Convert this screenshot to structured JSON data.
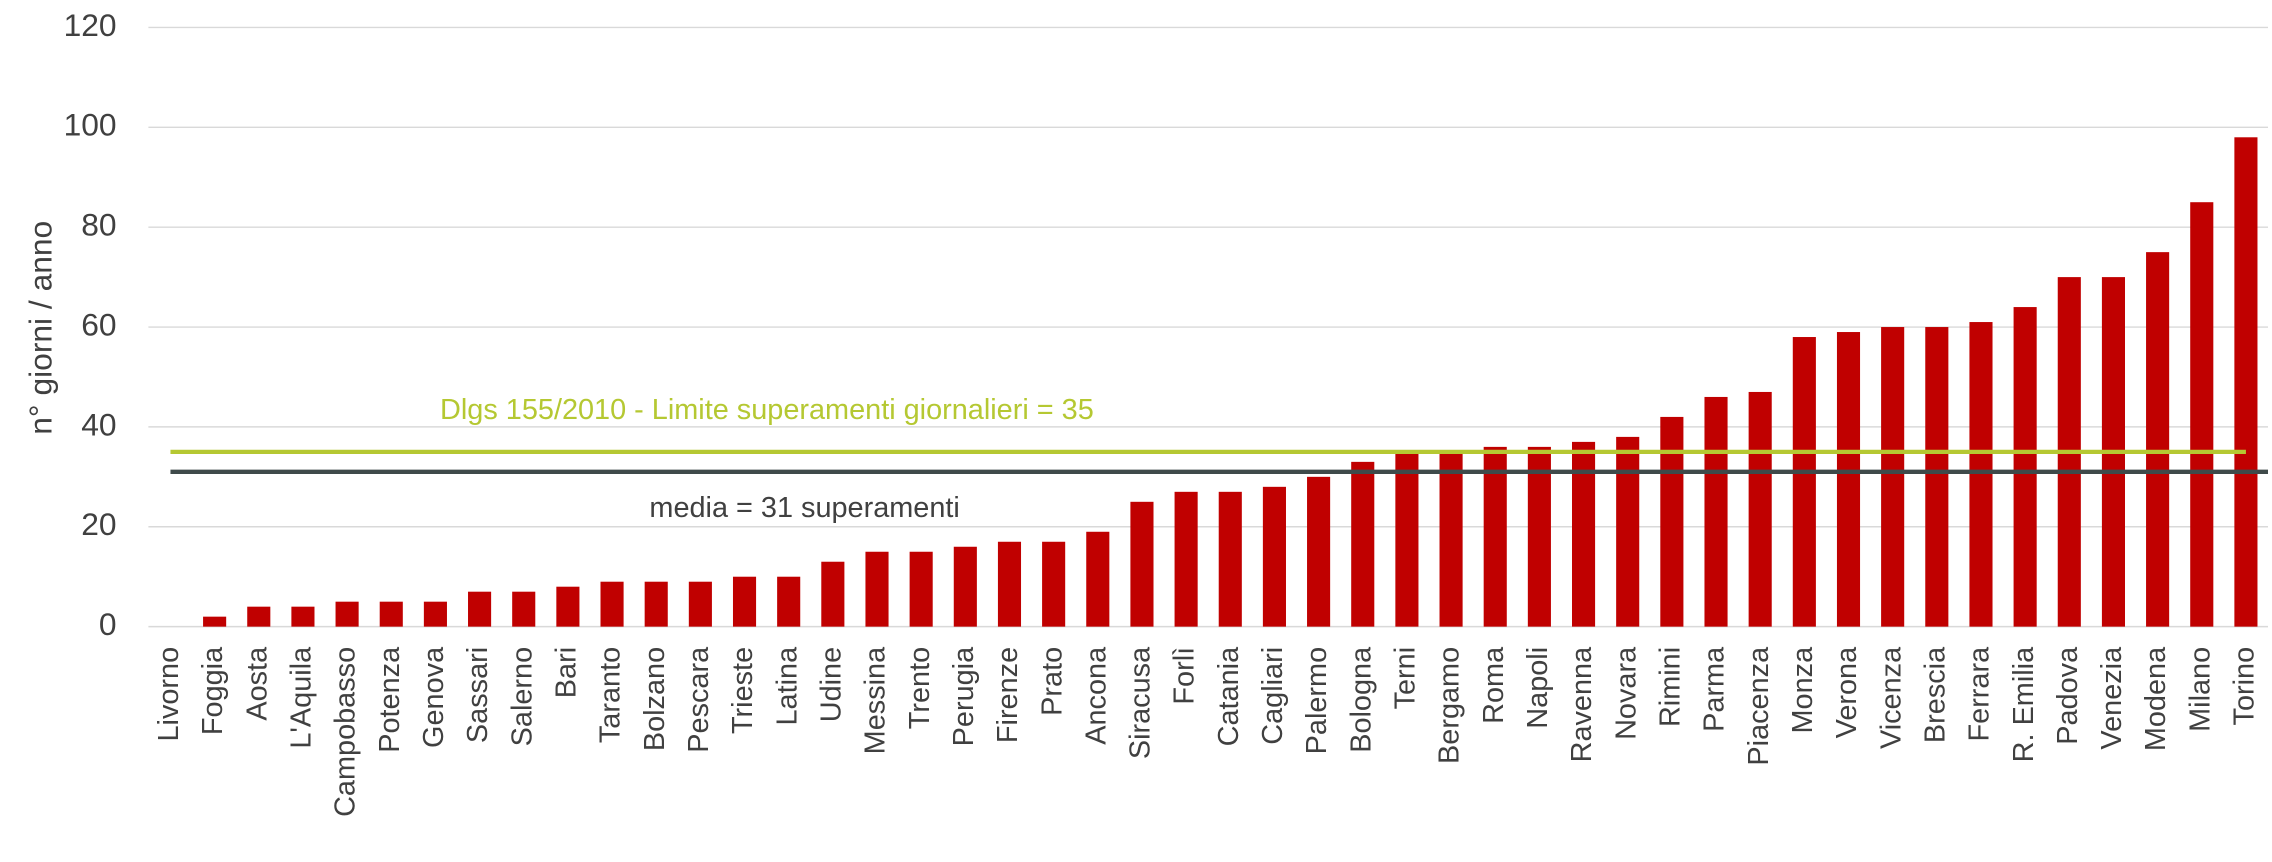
{
  "chart_data": {
    "type": "bar",
    "y_label": "n° giorni / anno",
    "categories": [
      "Livorno",
      "Foggia",
      "Aosta",
      "L'Aquila",
      "Campobasso",
      "Potenza",
      "Genova",
      "Sassari",
      "Salerno",
      "Bari",
      "Taranto",
      "Bolzano",
      "Pescara",
      "Trieste",
      "Latina",
      "Udine",
      "Messina",
      "Trento",
      "Perugia",
      "Firenze",
      "Prato",
      "Ancona",
      "Siracusa",
      "Forlì",
      "Catania",
      "Cagliari",
      "Palermo",
      "Bologna",
      "Terni",
      "Bergamo",
      "Roma",
      "Napoli",
      "Ravenna",
      "Novara",
      "Rimini",
      "Parma",
      "Piacenza",
      "Monza",
      "Verona",
      "Vicenza",
      "Brescia",
      "Ferrara",
      "R. Emilia",
      "Padova",
      "Venezia",
      "Modena",
      "Milano",
      "Torino"
    ],
    "values": [
      0,
      2,
      4,
      4,
      5,
      5,
      5,
      7,
      7,
      8,
      9,
      9,
      9,
      10,
      10,
      13,
      15,
      15,
      16,
      17,
      17,
      19,
      25,
      27,
      27,
      28,
      30,
      33,
      35,
      35,
      36,
      36,
      37,
      38,
      42,
      46,
      47,
      58,
      59,
      60,
      60,
      61,
      64,
      70,
      70,
      75,
      85,
      98
    ],
    "color": "#c00000",
    "ylim": [
      0,
      120
    ],
    "yticks": [
      0,
      20,
      40,
      60,
      80,
      100,
      120
    ],
    "grid": true,
    "reference_lines": [
      {
        "value": 35,
        "label": "Dlgs 155/2010 - Limite superamenti giornalieri = 35",
        "color": "#b5c832"
      },
      {
        "value": 31,
        "label": "media = 31 superamenti",
        "color": "#3f4a4a"
      }
    ]
  }
}
